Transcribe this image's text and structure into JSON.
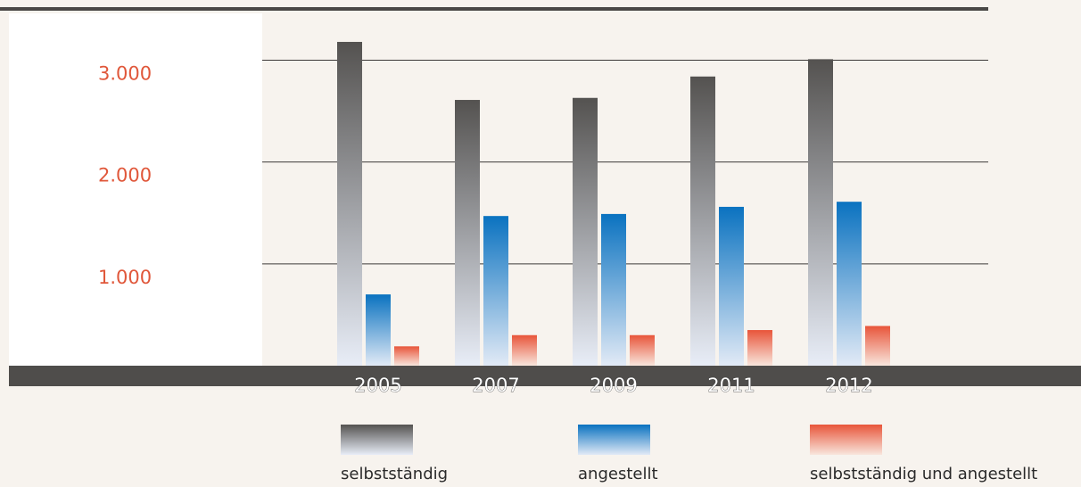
{
  "chart_data": {
    "type": "bar",
    "categories": [
      "2005",
      "2007",
      "2009",
      "2011",
      "2012"
    ],
    "series": [
      {
        "name": "selbstständig",
        "color": "#545250",
        "values": [
          3180,
          2610,
          2630,
          2840,
          3010
        ]
      },
      {
        "name": "angestellt",
        "color": "#0a72c0",
        "values": [
          700,
          1470,
          1490,
          1560,
          1610
        ]
      },
      {
        "name": "selbstständig und angestellt",
        "color": "#e8553a",
        "values": [
          190,
          300,
          300,
          350,
          390
        ]
      }
    ],
    "ylim": [
      0,
      3460
    ],
    "yticks": [
      {
        "value": 1000,
        "label": "1.000"
      },
      {
        "value": 2000,
        "label": "2.000"
      },
      {
        "value": 3000,
        "label": "3.000"
      }
    ],
    "grid": true
  }
}
